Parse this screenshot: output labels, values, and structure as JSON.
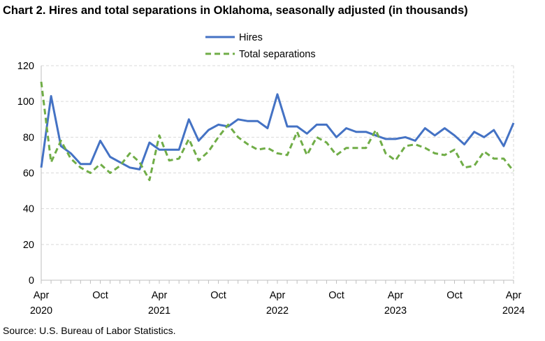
{
  "page": {
    "title": "Chart 2. Hires and total separations in Oklahoma, seasonally adjusted (in thousands)",
    "source": "Source: U.S. Bureau of Labor Statistics."
  },
  "chart_data": {
    "type": "line",
    "title": "Chart 2. Hires and total separations in Oklahoma, seasonally adjusted (in thousands)",
    "xlabel": "",
    "ylabel": "",
    "ylim": [
      0,
      120
    ],
    "yticks": [
      0,
      20,
      40,
      60,
      80,
      100,
      120
    ],
    "grid": true,
    "legend_position": "top-center",
    "x": [
      "2020-04",
      "2020-05",
      "2020-06",
      "2020-07",
      "2020-08",
      "2020-09",
      "2020-10",
      "2020-11",
      "2020-12",
      "2021-01",
      "2021-02",
      "2021-03",
      "2021-04",
      "2021-05",
      "2021-06",
      "2021-07",
      "2021-08",
      "2021-09",
      "2021-10",
      "2021-11",
      "2021-12",
      "2022-01",
      "2022-02",
      "2022-03",
      "2022-04",
      "2022-05",
      "2022-06",
      "2022-07",
      "2022-08",
      "2022-09",
      "2022-10",
      "2022-11",
      "2022-12",
      "2023-01",
      "2023-02",
      "2023-03",
      "2023-04",
      "2023-05",
      "2023-06",
      "2023-07",
      "2023-08",
      "2023-09",
      "2023-10",
      "2023-11",
      "2023-12",
      "2024-01",
      "2024-02",
      "2024-03",
      "2024-04"
    ],
    "x_tick_labels": [
      {
        "month": "Apr",
        "year": "2020",
        "index": 0
      },
      {
        "month": "Oct",
        "year": "",
        "index": 6
      },
      {
        "month": "Apr",
        "year": "2021",
        "index": 12
      },
      {
        "month": "Oct",
        "year": "",
        "index": 18
      },
      {
        "month": "Apr",
        "year": "2022",
        "index": 24
      },
      {
        "month": "Oct",
        "year": "",
        "index": 30
      },
      {
        "month": "Apr",
        "year": "2023",
        "index": 36
      },
      {
        "month": "Oct",
        "year": "",
        "index": 42
      },
      {
        "month": "Apr",
        "year": "2024",
        "index": 48
      }
    ],
    "series": [
      {
        "name": "Hires",
        "color": "#4472C4",
        "style": "solid",
        "values": [
          63,
          103,
          75,
          71,
          65,
          65,
          78,
          69,
          66,
          63,
          62,
          77,
          73,
          73,
          73,
          90,
          78,
          84,
          87,
          86,
          90,
          89,
          89,
          85,
          104,
          86,
          86,
          82,
          87,
          87,
          80,
          85,
          83,
          83,
          81,
          79,
          79,
          80,
          78,
          85,
          81,
          85,
          81,
          76,
          83,
          80,
          84,
          75,
          88
        ]
      },
      {
        "name": "Total separations",
        "color": "#70AD47",
        "style": "dashed",
        "values": [
          111,
          66,
          78,
          68,
          63,
          60,
          65,
          60,
          64,
          71,
          66,
          56,
          81,
          67,
          68,
          79,
          67,
          72,
          80,
          87,
          80,
          76,
          73,
          74,
          71,
          70,
          83,
          70,
          80,
          77,
          70,
          74,
          74,
          74,
          84,
          71,
          67,
          75,
          76,
          74,
          71,
          70,
          73,
          63,
          64,
          72,
          68,
          68,
          61
        ]
      }
    ]
  }
}
